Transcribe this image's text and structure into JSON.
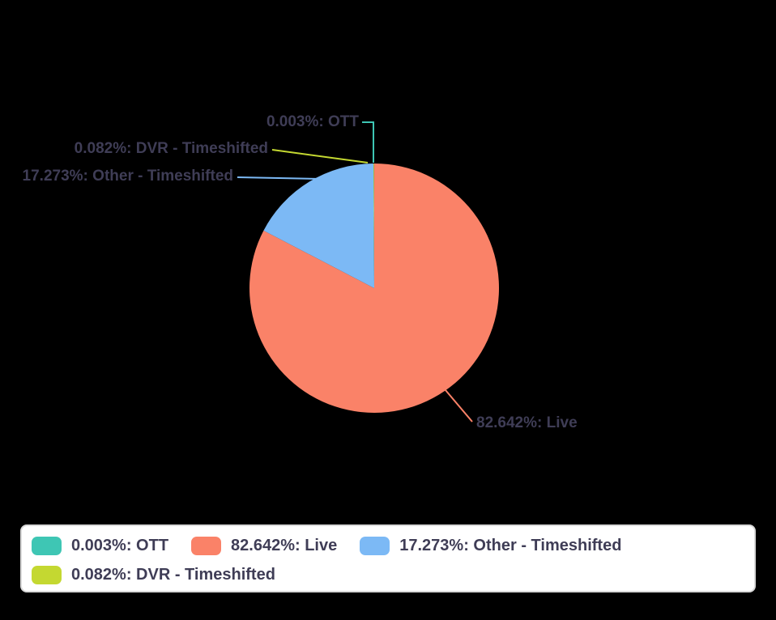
{
  "page": {
    "background": "#000000",
    "text_color": "#3f3d56"
  },
  "chart_data": {
    "type": "pie",
    "title": "",
    "unit": "%",
    "slices": [
      {
        "label": "OTT",
        "value": 0.003,
        "callout": "0.003%: OTT",
        "color": "#3ec6b4"
      },
      {
        "label": "Live",
        "value": 82.642,
        "callout": "82.642%: Live",
        "color": "#fa8268"
      },
      {
        "label": "Other - Timeshifted",
        "value": 17.273,
        "callout": "17.273%: Other - Timeshifted",
        "color": "#7cb9f5"
      },
      {
        "label": "DVR - Timeshifted",
        "value": 0.082,
        "callout": "0.082%: DVR - Timeshifted",
        "color": "#c4d831"
      }
    ],
    "start_angle_deg": 0,
    "direction": "clockwise",
    "legend": {
      "position": "bottom",
      "background": "#ffffff",
      "border_color": "#d9d9d9",
      "items": [
        {
          "label": "0.003%: OTT",
          "color": "#3ec6b4"
        },
        {
          "label": "82.642%: Live",
          "color": "#fa8268"
        },
        {
          "label": "17.273%: Other - Timeshifted",
          "color": "#7cb9f5"
        },
        {
          "label": "0.082%: DVR - Timeshifted",
          "color": "#c4d831"
        }
      ]
    }
  }
}
